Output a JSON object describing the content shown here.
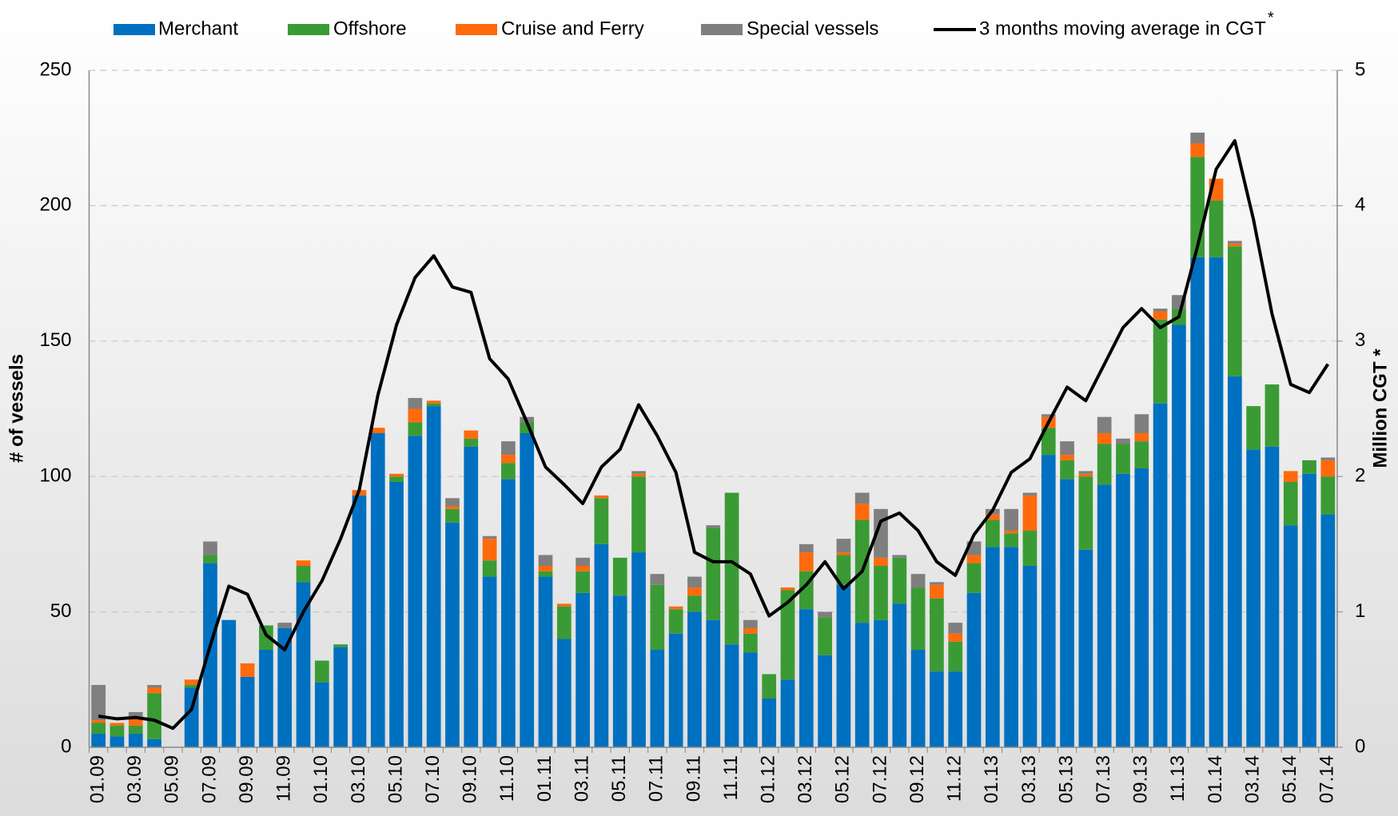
{
  "chart_data": {
    "type": "bar",
    "stacked": true,
    "categories": [
      "01.09",
      null,
      "03.09",
      null,
      "05.09",
      null,
      "07.09",
      null,
      "09.09",
      null,
      "11.09",
      null,
      "01.10",
      null,
      "03.10",
      null,
      "05.10",
      null,
      "07.10",
      null,
      "09.10",
      null,
      "11.10",
      null,
      "01.11",
      null,
      "03.11",
      null,
      "05.11",
      null,
      "07.11",
      null,
      "09.11",
      null,
      "11.11",
      null,
      "01.12",
      null,
      "03.12",
      null,
      "05.12",
      null,
      "07.12",
      null,
      "09.12",
      null,
      "11.12",
      null,
      "01.13",
      null,
      "03.13",
      null,
      "05.13",
      null,
      "07.13",
      null,
      "09.13",
      null,
      "11.13",
      null,
      "01.14",
      null,
      "03.14",
      null,
      "05.14",
      null,
      "07.14"
    ],
    "series": [
      {
        "name": "Merchant",
        "color": "#0070c0",
        "values": [
          5,
          4,
          5,
          3,
          0,
          22,
          68,
          47,
          26,
          36,
          44,
          61,
          24,
          37,
          93,
          116,
          98,
          115,
          126,
          83,
          111,
          63,
          99,
          116,
          63,
          40,
          57,
          75,
          56,
          72,
          36,
          42,
          50,
          47,
          38,
          35,
          18,
          25,
          51,
          34,
          60,
          46,
          47,
          53,
          36,
          28,
          28,
          57,
          74,
          74,
          67,
          108,
          99,
          73,
          97,
          101,
          103,
          127,
          156,
          181,
          181,
          137,
          110,
          111,
          82,
          101,
          86
        ]
      },
      {
        "name": "Offshore",
        "color": "#3a9b35",
        "values": [
          4,
          4,
          3,
          17,
          0,
          1,
          3,
          0,
          0,
          9,
          0,
          6,
          8,
          1,
          0,
          0,
          2,
          5,
          1,
          5,
          3,
          6,
          6,
          4,
          2,
          12,
          8,
          17,
          14,
          28,
          24,
          9,
          6,
          34,
          56,
          7,
          9,
          33,
          14,
          14,
          11,
          38,
          20,
          17,
          23,
          27,
          11,
          11,
          10,
          5,
          13,
          10,
          7,
          27,
          15,
          11,
          10,
          31,
          6,
          37,
          21,
          48,
          16,
          23,
          16,
          5,
          14
        ]
      },
      {
        "name": "Cruise and Ferry",
        "color": "#ff6a0d",
        "values": [
          1,
          1,
          3,
          2,
          0,
          2,
          0,
          0,
          5,
          0,
          0,
          2,
          0,
          0,
          2,
          2,
          1,
          5,
          1,
          1,
          3,
          8,
          3,
          0,
          2,
          1,
          2,
          1,
          0,
          1,
          0,
          1,
          3,
          0,
          0,
          2,
          0,
          1,
          7,
          0,
          1,
          6,
          3,
          0,
          0,
          5,
          3,
          3,
          2,
          1,
          13,
          4,
          2,
          1,
          4,
          0,
          3,
          3,
          0,
          5,
          8,
          1,
          0,
          0,
          4,
          0,
          6
        ]
      },
      {
        "name": "Special vessels",
        "color": "#7f7f7f",
        "values": [
          13,
          0,
          2,
          1,
          0,
          0,
          5,
          0,
          0,
          0,
          2,
          0,
          0,
          0,
          0,
          0,
          0,
          4,
          0,
          3,
          0,
          1,
          5,
          2,
          4,
          0,
          3,
          0,
          0,
          1,
          4,
          0,
          4,
          1,
          0,
          3,
          0,
          0,
          3,
          2,
          5,
          4,
          18,
          1,
          5,
          1,
          4,
          5,
          2,
          8,
          1,
          1,
          5,
          1,
          6,
          2,
          7,
          1,
          5,
          4,
          0,
          1,
          0,
          0,
          0,
          0,
          1
        ]
      },
      {
        "name": "3 months moving average in CGT",
        "color": "#000000",
        "type": "line",
        "axis": "y2",
        "values": [
          0.23,
          0.21,
          0.22,
          0.2,
          0.14,
          0.28,
          0.75,
          1.19,
          1.13,
          0.83,
          0.72,
          1.0,
          1.23,
          1.54,
          1.9,
          2.6,
          3.12,
          3.47,
          3.63,
          3.4,
          3.36,
          2.87,
          2.72,
          2.4,
          2.07,
          1.94,
          1.8,
          2.07,
          2.2,
          2.53,
          2.3,
          2.03,
          1.44,
          1.37,
          1.37,
          1.28,
          0.97,
          1.07,
          1.2,
          1.37,
          1.17,
          1.3,
          1.67,
          1.73,
          1.6,
          1.37,
          1.27,
          1.57,
          1.75,
          2.03,
          2.13,
          2.4,
          2.66,
          2.56,
          2.83,
          3.1,
          3.24,
          3.1,
          3.18,
          3.7,
          4.27,
          4.48,
          3.9,
          3.2,
          2.68,
          2.62,
          2.83
        ]
      }
    ],
    "legend_footnote_mark": "*",
    "y_label": "# of vessels",
    "y2_label": "Million CGT *",
    "ylim": [
      0,
      250
    ],
    "yticks": [
      0,
      50,
      100,
      150,
      200,
      250
    ],
    "y2lim": [
      0,
      5
    ],
    "y2ticks": [
      0,
      1,
      2,
      3,
      4,
      5
    ],
    "grid": true,
    "legend": "top"
  }
}
